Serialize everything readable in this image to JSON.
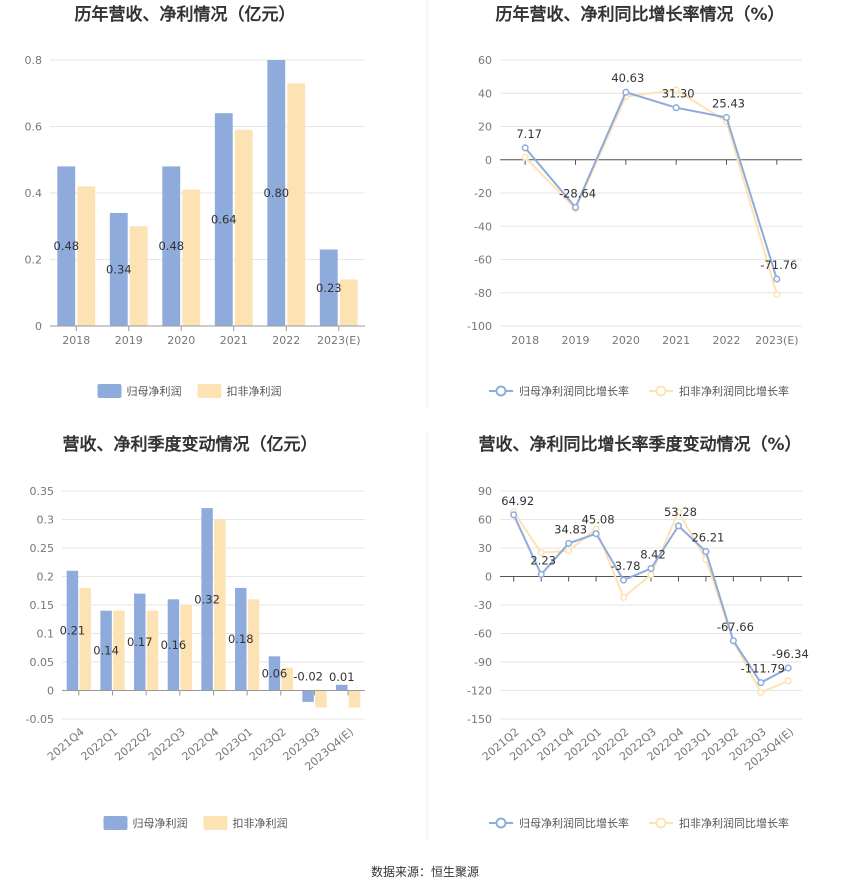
{
  "colors": {
    "primary": "#8eabdc",
    "secondary": "#fde3b3",
    "grid": "#e6e6e6",
    "axis": "#999999",
    "divider": "#eeeeee"
  },
  "source": "数据来源：恒生聚源",
  "chart_data": [
    {
      "type": "bar",
      "title": "历年营收、净利情况（亿元）",
      "categories": [
        "2018",
        "2019",
        "2020",
        "2021",
        "2022",
        "2023(E)"
      ],
      "ylim": [
        0,
        0.8
      ],
      "yticks": [
        "0",
        "0.2",
        "0.4",
        "0.6",
        "0.8"
      ],
      "ytick_values": [
        0,
        0.2,
        0.4,
        0.6,
        0.8
      ],
      "series": [
        {
          "name": "归母净利润",
          "values": [
            0.48,
            0.34,
            0.48,
            0.64,
            0.8,
            0.23
          ],
          "labels": [
            "0.48",
            "0.34",
            "0.48",
            "0.64",
            "0.80",
            "0.23"
          ]
        },
        {
          "name": "扣非净利润",
          "values": [
            0.42,
            0.3,
            0.41,
            0.59,
            0.73,
            0.14
          ]
        }
      ],
      "grid": true,
      "legend": "bottom"
    },
    {
      "type": "line",
      "title": "历年营收、净利同比增长率情况（%）",
      "categories": [
        "2018",
        "2019",
        "2020",
        "2021",
        "2022",
        "2023(E)"
      ],
      "ylim": [
        -100,
        60
      ],
      "yticks": [
        "60",
        "40",
        "20",
        "0",
        "-20",
        "-40",
        "-60",
        "-80",
        "-100"
      ],
      "ytick_values": [
        60,
        40,
        20,
        0,
        -20,
        -40,
        -60,
        -80,
        -100
      ],
      "series": [
        {
          "name": "归母净利润同比增长率",
          "values": [
            7.17,
            -28.64,
            40.63,
            31.3,
            25.43,
            -71.76
          ],
          "labels": [
            "7.17",
            "-28.64",
            "40.63",
            "31.30",
            "25.43",
            "-71.76"
          ]
        },
        {
          "name": "扣非净利润同比增长率",
          "values": [
            1.5,
            -29.5,
            38.0,
            42.0,
            23.0,
            -81.0
          ]
        }
      ],
      "grid": true,
      "legend": "bottom"
    },
    {
      "type": "bar",
      "title": "营收、净利季度变动情况（亿元）",
      "categories": [
        "2021Q4",
        "2022Q1",
        "2022Q2",
        "2022Q3",
        "2022Q4",
        "2023Q1",
        "2023Q2",
        "2023Q3",
        "2023Q4(E)"
      ],
      "ylim": [
        -0.05,
        0.35
      ],
      "yticks": [
        "0.35",
        "0.3",
        "0.25",
        "0.2",
        "0.15",
        "0.1",
        "0.05",
        "0",
        "-0.05"
      ],
      "ytick_values": [
        0.35,
        0.3,
        0.25,
        0.2,
        0.15,
        0.1,
        0.05,
        0,
        -0.05
      ],
      "series": [
        {
          "name": "归母净利润",
          "values": [
            0.21,
            0.14,
            0.17,
            0.16,
            0.32,
            0.18,
            0.06,
            -0.02,
            0.01
          ],
          "labels": [
            "0.21",
            "0.14",
            "0.17",
            "0.16",
            "0.32",
            "0.18",
            "0.06",
            "-0.02",
            "0.01"
          ]
        },
        {
          "name": "扣非净利润",
          "values": [
            0.18,
            0.14,
            0.14,
            0.15,
            0.3,
            0.16,
            0.04,
            -0.03,
            -0.03
          ]
        }
      ],
      "grid": true,
      "legend": "bottom"
    },
    {
      "type": "line",
      "title": "营收、净利同比增长率季度变动情况（%）",
      "categories": [
        "2021Q2",
        "2021Q3",
        "2021Q4",
        "2022Q1",
        "2022Q2",
        "2022Q3",
        "2022Q4",
        "2023Q1",
        "2023Q2",
        "2023Q3",
        "2023Q4(E)"
      ],
      "ylim": [
        -150,
        90
      ],
      "yticks": [
        "90",
        "60",
        "30",
        "0",
        "-30",
        "-60",
        "-90",
        "-120",
        "-150"
      ],
      "ytick_values": [
        90,
        60,
        30,
        0,
        -30,
        -60,
        -90,
        -120,
        -150
      ],
      "series": [
        {
          "name": "归母净利润同比增长率",
          "values": [
            64.92,
            2.23,
            34.83,
            45.08,
            -3.78,
            8.42,
            53.28,
            26.21,
            -67.66,
            -111.79,
            -96.34
          ],
          "labels": [
            "64.92",
            "2.23",
            "34.83",
            "45.08",
            "-3.78",
            "8.42",
            "53.28",
            "26.21",
            "-67.66",
            "-111.79",
            "-96.34"
          ]
        },
        {
          "name": "扣非净利润同比增长率",
          "values": [
            68.0,
            25.0,
            27.0,
            50.0,
            -22.0,
            2.0,
            68.0,
            18.0,
            -68.0,
            -122.0,
            -110.0
          ]
        }
      ],
      "grid": true,
      "legend": "bottom"
    }
  ]
}
